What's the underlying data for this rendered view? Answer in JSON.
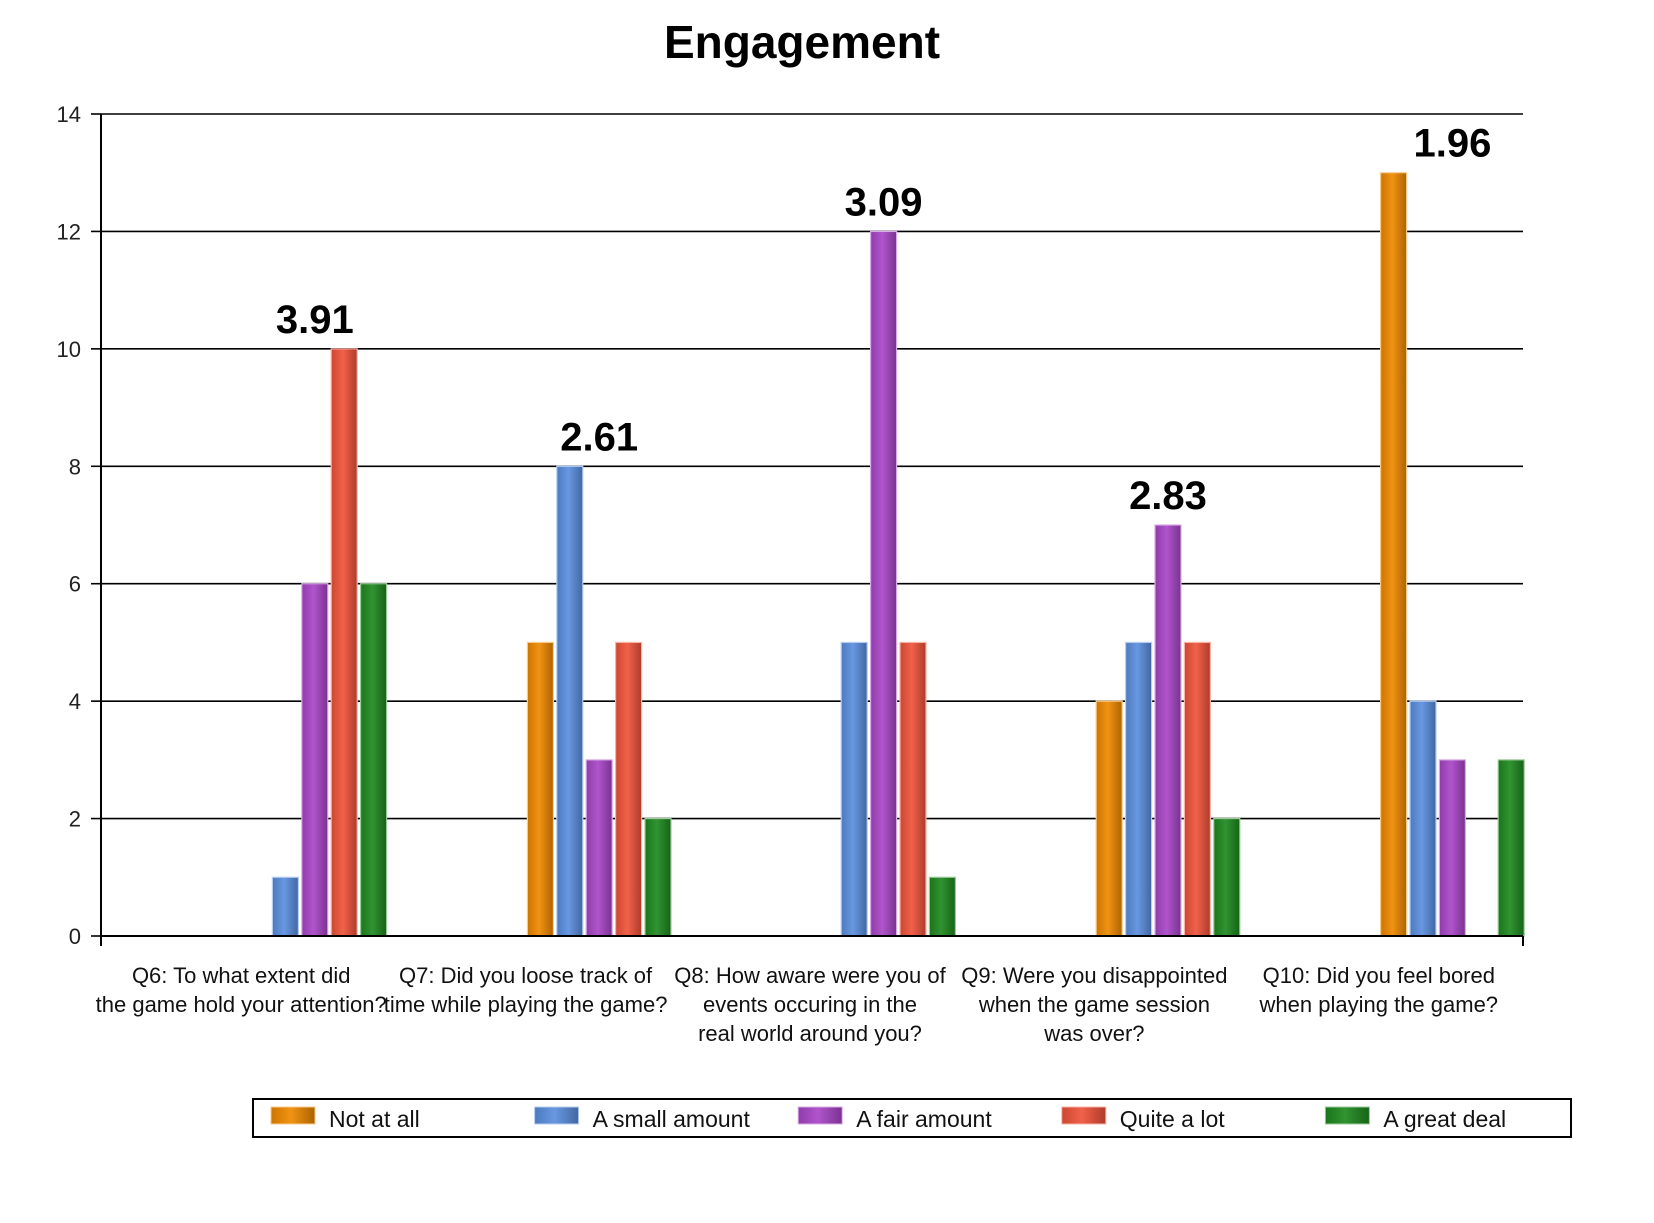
{
  "chart_data": {
    "type": "bar",
    "title": "Engagement",
    "xlabel": "",
    "ylabel": "",
    "ylim": [
      0,
      14
    ],
    "yticks": [
      0,
      2,
      4,
      6,
      8,
      10,
      12,
      14
    ],
    "grid": true,
    "legend_position": "bottom",
    "categories": [
      [
        "Q6: To what extent did",
        "the game hold your attention?"
      ],
      [
        "Q7: Did you loose track of",
        "time while playing the game?"
      ],
      [
        "Q8: How aware were you of",
        "events occuring in the",
        "real world around you?"
      ],
      [
        "Q9: Were you disappointed",
        "when the game session",
        "was over?"
      ],
      [
        "Q10: Did you feel bored",
        "when playing the game?"
      ]
    ],
    "annotations": [
      "3.91",
      "2.61",
      "3.09",
      "2.83",
      "1.96"
    ],
    "series": [
      {
        "name": "Not at all",
        "color": "#f08a00",
        "values": [
          0,
          5,
          0,
          4,
          13
        ]
      },
      {
        "name": "A small amount",
        "color": "#5b8fe0",
        "values": [
          1,
          8,
          5,
          5,
          4
        ]
      },
      {
        "name": "A fair amount",
        "color": "#a946c8",
        "values": [
          6,
          3,
          12,
          7,
          3
        ]
      },
      {
        "name": "Quite a lot",
        "color": "#f0533a",
        "values": [
          10,
          5,
          5,
          5,
          0
        ]
      },
      {
        "name": "A great deal",
        "color": "#1f8a1f",
        "values": [
          6,
          2,
          1,
          2,
          3
        ]
      }
    ]
  }
}
